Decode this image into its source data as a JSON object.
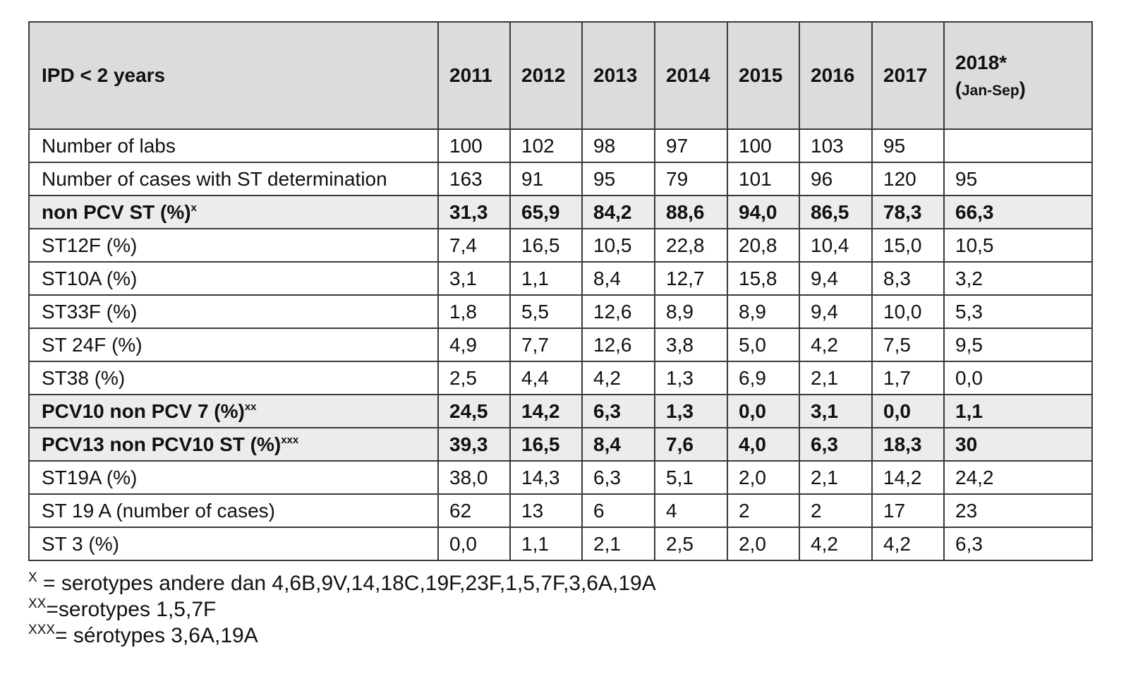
{
  "table": {
    "header": {
      "row_label": "IPD < 2 years",
      "years": [
        "2011",
        "2012",
        "2013",
        "2014",
        "2015",
        "2016",
        "2017"
      ],
      "last_year": "2018*",
      "last_year_note": "Jan-Sep"
    },
    "rows": [
      {
        "label": "Number of labs",
        "sup": "",
        "bold": false,
        "values": [
          "100",
          "102",
          "98",
          "97",
          "100",
          "103",
          "95",
          ""
        ]
      },
      {
        "label": "Number of cases with ST determination",
        "sup": "",
        "bold": false,
        "values": [
          "163",
          "91",
          "95",
          "79",
          "101",
          "96",
          "120",
          "95"
        ]
      },
      {
        "label": "non PCV ST (%)",
        "sup": "x",
        "bold": true,
        "values": [
          "31,3",
          "65,9",
          "84,2",
          "88,6",
          "94,0",
          "86,5",
          "78,3",
          "66,3"
        ]
      },
      {
        "label": "ST12F (%)",
        "sup": "",
        "bold": false,
        "values": [
          "7,4",
          "16,5",
          "10,5",
          "22,8",
          "20,8",
          "10,4",
          "15,0",
          "10,5"
        ]
      },
      {
        "label": "ST10A (%)",
        "sup": "",
        "bold": false,
        "values": [
          "3,1",
          "1,1",
          "8,4",
          "12,7",
          "15,8",
          "9,4",
          "8,3",
          "3,2"
        ]
      },
      {
        "label": "ST33F (%)",
        "sup": "",
        "bold": false,
        "values": [
          "1,8",
          "5,5",
          "12,6",
          "8,9",
          "8,9",
          "9,4",
          "10,0",
          "5,3"
        ]
      },
      {
        "label": "ST 24F (%)",
        "sup": "",
        "bold": false,
        "values": [
          "4,9",
          "7,7",
          "12,6",
          "3,8",
          "5,0",
          "4,2",
          "7,5",
          "9,5"
        ]
      },
      {
        "label": "ST38 (%)",
        "sup": "",
        "bold": false,
        "values": [
          "2,5",
          "4,4",
          "4,2",
          "1,3",
          "6,9",
          "2,1",
          "1,7",
          "0,0"
        ]
      },
      {
        "label": "PCV10 non PCV 7 (%)",
        "sup": "xx",
        "bold": true,
        "values": [
          "24,5",
          "14,2",
          "6,3",
          "1,3",
          "0,0",
          "3,1",
          "0,0",
          "1,1"
        ]
      },
      {
        "label": "PCV13 non PCV10 ST (%)",
        "sup": "xxx",
        "bold": true,
        "values": [
          "39,3",
          "16,5",
          "8,4",
          "7,6",
          "4,0",
          "6,3",
          "18,3",
          "30"
        ]
      },
      {
        "label": "ST19A (%)",
        "sup": "",
        "bold": false,
        "values": [
          "38,0",
          "14,3",
          "6,3",
          "5,1",
          "2,0",
          "2,1",
          "14,2",
          "24,2"
        ]
      },
      {
        "label": "ST 19 A (number of cases)",
        "sup": "",
        "bold": false,
        "values": [
          "62",
          "13",
          "6",
          "4",
          "2",
          "2",
          "17",
          "23"
        ]
      },
      {
        "label": "ST 3 (%)",
        "sup": "",
        "bold": false,
        "values": [
          "0,0",
          "1,1",
          "2,1",
          "2,5",
          "2,0",
          "4,2",
          "4,2",
          "6,3"
        ]
      }
    ]
  },
  "footnotes": [
    {
      "marker": "X",
      "text": " = serotypes andere dan 4,6B,9V,14,18C,19F,23F,1,5,7F,3,6A,19A"
    },
    {
      "marker": "XX",
      "text": "=serotypes 1,5,7F"
    },
    {
      "marker": "XXX",
      "text": "= sérotypes 3,6A,19A"
    }
  ]
}
